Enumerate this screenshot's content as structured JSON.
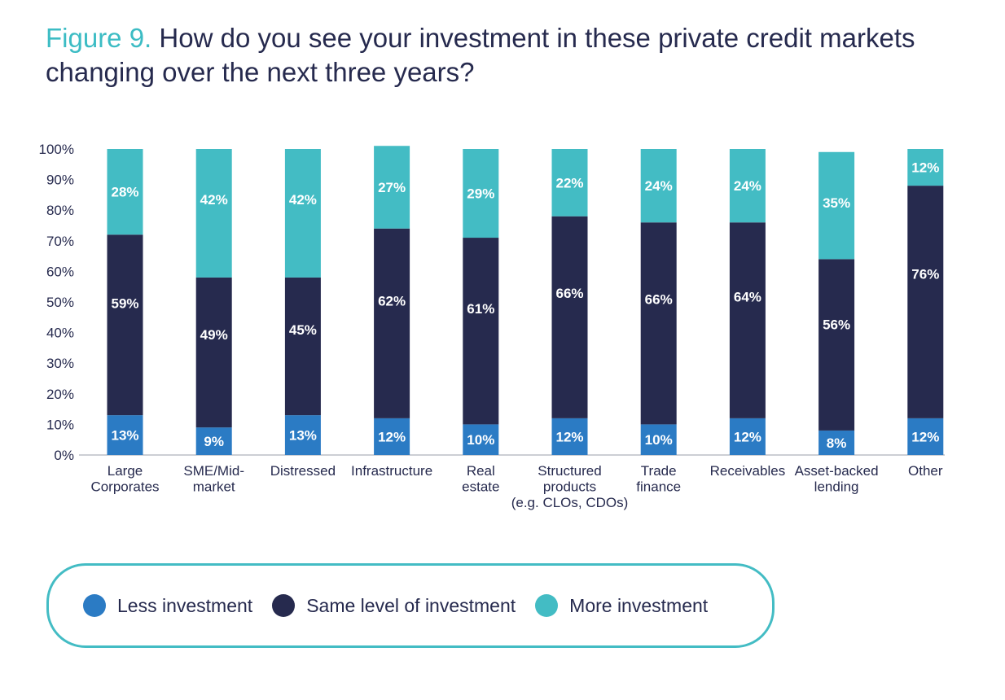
{
  "title": {
    "prefix": "Figure 9.",
    "text": "How do you see your investment in these private credit markets changing over the next three years?"
  },
  "colors": {
    "less": "#2b7bc4",
    "same": "#262a4e",
    "more": "#43bcc4",
    "axis_text": "#262a4e"
  },
  "legend": [
    {
      "key": "less",
      "label": "Less investment"
    },
    {
      "key": "same",
      "label": "Same level of investment"
    },
    {
      "key": "more",
      "label": "More investment"
    }
  ],
  "chart_data": {
    "type": "bar",
    "stacked": true,
    "title": "How do you see your investment in these private credit markets changing over the next three years?",
    "xlabel": "",
    "ylabel": "",
    "ylim": [
      0,
      100
    ],
    "yticks": [
      "0%",
      "10%",
      "20%",
      "30%",
      "40%",
      "50%",
      "60%",
      "70%",
      "80%",
      "90%",
      "100%"
    ],
    "categories": [
      [
        "Large",
        "Corporates"
      ],
      [
        "SME/Mid-",
        "market"
      ],
      [
        "Distressed"
      ],
      [
        "Infrastructure"
      ],
      [
        "Real",
        "estate"
      ],
      [
        "Structured",
        "products",
        "(e.g. CLOs, CDOs)"
      ],
      [
        "Trade",
        "finance"
      ],
      [
        "Receivables"
      ],
      [
        "Asset-backed",
        "lending"
      ],
      [
        "Other"
      ]
    ],
    "series": [
      {
        "name": "Less investment",
        "key": "less",
        "values": [
          13,
          9,
          13,
          12,
          10,
          12,
          10,
          12,
          8,
          12
        ]
      },
      {
        "name": "Same level of investment",
        "key": "same",
        "values": [
          59,
          49,
          45,
          62,
          61,
          66,
          66,
          64,
          56,
          76
        ]
      },
      {
        "name": "More investment",
        "key": "more",
        "values": [
          28,
          42,
          42,
          27,
          29,
          22,
          24,
          24,
          35,
          12
        ]
      }
    ],
    "data_labels": [
      [
        "13%",
        "9%",
        "13%",
        "12%",
        "10%",
        "12%",
        "10%",
        "12%",
        "8%",
        "12%"
      ],
      [
        "59%",
        "49%",
        "45%",
        "62%",
        "61%",
        "66%",
        "66%",
        "64%",
        "56%",
        "76%"
      ],
      [
        "28%",
        "42%",
        "42%",
        "27%",
        "29%",
        "22%",
        "24%",
        "24%",
        "35%",
        "12%"
      ]
    ],
    "legend_position": "bottom"
  }
}
